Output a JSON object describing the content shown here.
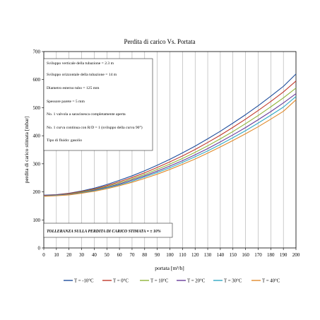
{
  "chart_data": {
    "type": "line",
    "title": "Perdita di carico Vs. Portata",
    "xlabel": "portata [m³/h]",
    "ylabel": "perdita di carico stimata [mbar]",
    "xlim": [
      0,
      200
    ],
    "ylim": [
      0,
      700
    ],
    "x_ticks": [
      0,
      10,
      20,
      30,
      40,
      50,
      60,
      70,
      80,
      90,
      100,
      110,
      120,
      130,
      140,
      150,
      160,
      170,
      180,
      190,
      200
    ],
    "y_ticks": [
      0,
      100,
      200,
      300,
      400,
      500,
      600,
      700
    ],
    "grid": {
      "vertical": true,
      "horizontal": false
    },
    "legend_position": "bottom",
    "x": [
      0,
      10,
      20,
      30,
      40,
      50,
      60,
      70,
      80,
      90,
      100,
      110,
      120,
      130,
      140,
      150,
      160,
      170,
      180,
      190,
      200
    ],
    "series": [
      {
        "name": "T = -10°C",
        "color": "#1f4e9c",
        "values": [
          188,
          190,
          195,
          203,
          213,
          226,
          241,
          257,
          275,
          295,
          316,
          339,
          363,
          389,
          416,
          445,
          475,
          507,
          541,
          576,
          620
        ]
      },
      {
        "name": "T = 0°C",
        "color": "#c0392b",
        "values": [
          187,
          189,
          194,
          201,
          210,
          222,
          236,
          251,
          268,
          287,
          307,
          328,
          351,
          376,
          402,
          430,
          459,
          490,
          522,
          556,
          595
        ]
      },
      {
        "name": "T = 10°C",
        "color": "#8fb339",
        "values": [
          186,
          188,
          192,
          199,
          208,
          219,
          232,
          246,
          262,
          280,
          299,
          319,
          341,
          364,
          389,
          415,
          443,
          472,
          503,
          535,
          570
        ]
      },
      {
        "name": "T = 20°C",
        "color": "#6a3d9a",
        "values": [
          186,
          188,
          191,
          197,
          206,
          216,
          228,
          242,
          257,
          274,
          292,
          311,
          332,
          354,
          378,
          403,
          429,
          457,
          486,
          517,
          550
        ]
      },
      {
        "name": "T = 30°C",
        "color": "#31a9c4",
        "values": [
          185,
          187,
          190,
          196,
          204,
          214,
          225,
          238,
          253,
          269,
          286,
          305,
          325,
          346,
          369,
          393,
          418,
          445,
          473,
          502,
          540
        ]
      },
      {
        "name": "T = 40°C",
        "color": "#e08a2c",
        "values": [
          184,
          186,
          189,
          195,
          202,
          211,
          222,
          234,
          248,
          263,
          280,
          298,
          317,
          338,
          360,
          383,
          407,
          432,
          459,
          487,
          528
        ]
      }
    ],
    "info_box": [
      "Sviluppo verticale della tubazione = 2.3 m",
      "Sviluppo orizzontale della tubazione = 14 m",
      "Diametro esterno tubo = 125 mm",
      "Spessore parete = 5 mm",
      "No. 1 valvola a saracinesca completamente aperta",
      "No. 1 curva continua con R/D = 1 (sviluppo della curva 90°)",
      "Tipo di fluido: gasolio"
    ],
    "annotation": "TOLLERANZA SULLA PERDITA DI CARICO STIMATA = ± 10%"
  }
}
